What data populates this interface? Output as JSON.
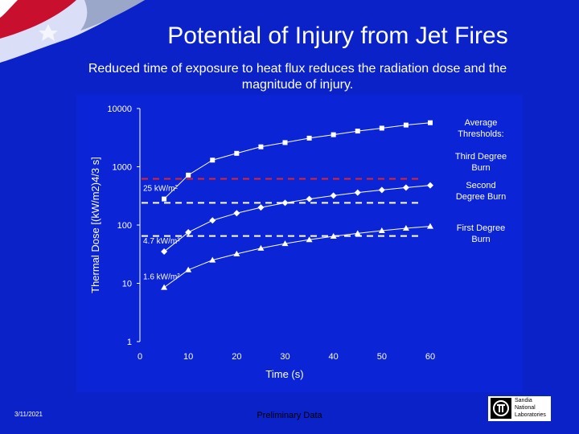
{
  "slide": {
    "title": "Potential of Injury from Jet Fires",
    "subtitle": "Reduced time of exposure to heat flux reduces the radiation dose and the magnitude of injury.",
    "date": "3/11/2021",
    "footer_note": "Preliminary Data",
    "logo_text": [
      "Sandia",
      "National",
      "Laboratories"
    ]
  },
  "colors": {
    "slide_background": "#0a22c8",
    "chart_background": "#0b24d6",
    "series": "#ffffff",
    "threshold_third_degree": "#e0242a",
    "threshold_other": "#ffffff"
  },
  "chart_data": {
    "type": "line",
    "title": "",
    "xlabel": "Time (s)",
    "ylabel": "Thermal Dose [(kW/m2)4/3 s]",
    "xlim": [
      0,
      60
    ],
    "ylim": [
      1,
      10000
    ],
    "yscale": "log",
    "grid": false,
    "xticks": [
      0,
      10,
      20,
      30,
      40,
      50,
      60
    ],
    "yticks": [
      1,
      10,
      100,
      1000,
      10000
    ],
    "series": [
      {
        "name": "25 kW/m²",
        "marker": "square",
        "x": [
          5,
          10,
          15,
          20,
          25,
          30,
          35,
          40,
          45,
          50,
          55,
          60
        ],
        "y": [
          280,
          720,
          1300,
          1700,
          2200,
          2600,
          3100,
          3550,
          4100,
          4600,
          5200,
          5700
        ]
      },
      {
        "name": "4.7 kW/m²",
        "marker": "diamond",
        "x": [
          5,
          10,
          15,
          20,
          25,
          30,
          35,
          40,
          45,
          50,
          55,
          60
        ],
        "y": [
          35,
          75,
          120,
          160,
          200,
          240,
          280,
          320,
          360,
          400,
          440,
          480
        ]
      },
      {
        "name": "1.6 kW/m²",
        "marker": "triangle",
        "x": [
          5,
          10,
          15,
          20,
          25,
          30,
          35,
          40,
          45,
          50,
          55,
          60
        ],
        "y": [
          8.5,
          17,
          25,
          32,
          40,
          48,
          56,
          64,
          72,
          80,
          88,
          95
        ]
      }
    ],
    "thresholds": [
      {
        "label": "Third Degree Burn",
        "value": 620,
        "color": "#e0242a",
        "style": "dashed"
      },
      {
        "label": "Second Degree Burn",
        "value": 240,
        "color": "#ffffff",
        "style": "dashed"
      },
      {
        "label": "First Degree Burn",
        "value": 65,
        "color": "#ffffff",
        "style": "dashed"
      }
    ],
    "legend": {
      "placement": "right",
      "heading": "Average Thresholds:",
      "entries": [
        "Third Degree Burn",
        "Second Degree Burn",
        "First Degree Burn"
      ]
    }
  }
}
